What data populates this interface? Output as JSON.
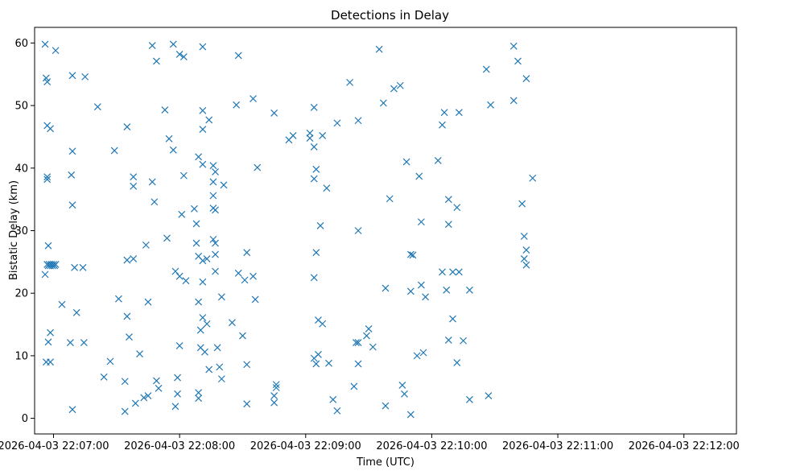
{
  "chart_data": {
    "type": "scatter",
    "title": "Detections in Delay",
    "xlabel": "Time (UTC)",
    "ylabel": "Bistatic Delay (km)",
    "x_unit": "seconds after 2026-04-03 22:07:00",
    "xlim": [
      -9,
      325
    ],
    "ylim": [
      -2.5,
      62.5
    ],
    "x_ticks": [
      {
        "value": 0,
        "label": "2026-04-03 22:07:00"
      },
      {
        "value": 60,
        "label": "2026-04-03 22:08:00"
      },
      {
        "value": 120,
        "label": "2026-04-03 22:09:00"
      },
      {
        "value": 180,
        "label": "2026-04-03 22:10:00"
      },
      {
        "value": 240,
        "label": "2026-04-03 22:11:00"
      },
      {
        "value": 300,
        "label": "2026-04-03 22:12:00"
      }
    ],
    "y_ticks": [
      {
        "value": 0,
        "label": "0"
      },
      {
        "value": 10,
        "label": "10"
      },
      {
        "value": 20,
        "label": "20"
      },
      {
        "value": 30,
        "label": "30"
      },
      {
        "value": 40,
        "label": "40"
      },
      {
        "value": 50,
        "label": "50"
      },
      {
        "value": 60,
        "label": "60"
      }
    ],
    "grid": false,
    "marker": "x",
    "color": "#1f77b4",
    "points": [
      [
        -4,
        59.8
      ],
      [
        -3.5,
        54.4
      ],
      [
        -3,
        53.8
      ],
      [
        -3,
        46.8
      ],
      [
        -1.5,
        46.3
      ],
      [
        1,
        58.8
      ],
      [
        9,
        54.8
      ],
      [
        15,
        54.6
      ],
      [
        9,
        42.7
      ],
      [
        8.5,
        38.9
      ],
      [
        -3,
        38.6
      ],
      [
        -3,
        38.2
      ],
      [
        9,
        34.1
      ],
      [
        -2.5,
        27.6
      ],
      [
        -3,
        24.6
      ],
      [
        -2.5,
        24.4
      ],
      [
        -2,
        24.6
      ],
      [
        -1.5,
        24.4
      ],
      [
        -1,
        24.6
      ],
      [
        -0.5,
        24.4
      ],
      [
        0,
        24.6
      ],
      [
        0.5,
        24.4
      ],
      [
        1,
        24.6
      ],
      [
        -4,
        23
      ],
      [
        10,
        24.1
      ],
      [
        14,
        24.1
      ],
      [
        4,
        18.2
      ],
      [
        11,
        16.9
      ],
      [
        -1.5,
        13.7
      ],
      [
        -2.5,
        12.2
      ],
      [
        8,
        12.1
      ],
      [
        14.5,
        12.1
      ],
      [
        -3.5,
        9
      ],
      [
        -1.5,
        9
      ],
      [
        9,
        1.4
      ],
      [
        21,
        49.8
      ],
      [
        29,
        42.8
      ],
      [
        35,
        46.6
      ],
      [
        38,
        38.6
      ],
      [
        38,
        37.1
      ],
      [
        44,
        27.7
      ],
      [
        35,
        25.3
      ],
      [
        38,
        25.5
      ],
      [
        31,
        19.1
      ],
      [
        45,
        18.6
      ],
      [
        35,
        16.3
      ],
      [
        36,
        13
      ],
      [
        41,
        10.3
      ],
      [
        24,
        6.6
      ],
      [
        27,
        9.1
      ],
      [
        34,
        5.9
      ],
      [
        34,
        1.1
      ],
      [
        39,
        2.4
      ],
      [
        43,
        3.3
      ],
      [
        45,
        3.6
      ],
      [
        47,
        59.6
      ],
      [
        49,
        57.1
      ],
      [
        57,
        59.8
      ],
      [
        60,
        58.2
      ],
      [
        62,
        57.8
      ],
      [
        53,
        49.3
      ],
      [
        55,
        44.7
      ],
      [
        57,
        42.9
      ],
      [
        48,
        34.6
      ],
      [
        54,
        28.8
      ],
      [
        47,
        37.8
      ],
      [
        58,
        23.5
      ],
      [
        60,
        22.7
      ],
      [
        63,
        22
      ],
      [
        49,
        6
      ],
      [
        50,
        4.8
      ],
      [
        60,
        11.6
      ],
      [
        59,
        6.5
      ],
      [
        59,
        3.9
      ],
      [
        58,
        1.9
      ],
      [
        62,
        38.8
      ],
      [
        61,
        32.6
      ],
      [
        67,
        33.5
      ],
      [
        69,
        41.8
      ],
      [
        68,
        31.1
      ],
      [
        71,
        40.6
      ],
      [
        68,
        28
      ],
      [
        69,
        25.9
      ],
      [
        71,
        25.2
      ],
      [
        73,
        25.5
      ],
      [
        71,
        21.8
      ],
      [
        71,
        16.1
      ],
      [
        70,
        14.1
      ],
      [
        73,
        15.1
      ],
      [
        70,
        11.3
      ],
      [
        72,
        10.6
      ],
      [
        74,
        7.8
      ],
      [
        69,
        4.1
      ],
      [
        69,
        3.2
      ],
      [
        71,
        59.4
      ],
      [
        71,
        49.2
      ],
      [
        71,
        46.2
      ],
      [
        74,
        47.7
      ],
      [
        76,
        40.4
      ],
      [
        77,
        39.4
      ],
      [
        76,
        37.8
      ],
      [
        81,
        37.3
      ],
      [
        76,
        35.6
      ],
      [
        76,
        33.6
      ],
      [
        77,
        33.3
      ],
      [
        76,
        28.6
      ],
      [
        77,
        28
      ],
      [
        77,
        26.2
      ],
      [
        77,
        23.5
      ],
      [
        69,
        18.6
      ],
      [
        78,
        11.3
      ],
      [
        79,
        8.2
      ],
      [
        80,
        6.3
      ],
      [
        80,
        19.4
      ],
      [
        85,
        15.3
      ],
      [
        88,
        23.2
      ],
      [
        92,
        26.5
      ],
      [
        91,
        22.1
      ],
      [
        95,
        22.7
      ],
      [
        96,
        19
      ],
      [
        90,
        13.2
      ],
      [
        92,
        8.6
      ],
      [
        92,
        2.3
      ],
      [
        87,
        50.1
      ],
      [
        95,
        51.1
      ],
      [
        88,
        58
      ],
      [
        97,
        40.1
      ],
      [
        105,
        48.8
      ],
      [
        112,
        44.5
      ],
      [
        114,
        45.2
      ],
      [
        122,
        45.6
      ],
      [
        122,
        44.8
      ],
      [
        124,
        43.4
      ],
      [
        124,
        49.7
      ],
      [
        128,
        45.2
      ],
      [
        135,
        47.2
      ],
      [
        130,
        36.8
      ],
      [
        125,
        39.8
      ],
      [
        124,
        38.3
      ],
      [
        127,
        30.8
      ],
      [
        125,
        26.5
      ],
      [
        124,
        22.5
      ],
      [
        124,
        9.6
      ],
      [
        125,
        8.7
      ],
      [
        126,
        10.2
      ],
      [
        126,
        15.7
      ],
      [
        128,
        15.1
      ],
      [
        131,
        8.8
      ],
      [
        133,
        3
      ],
      [
        135,
        1.2
      ],
      [
        105,
        3.6
      ],
      [
        105,
        2.5
      ],
      [
        106,
        4.9
      ],
      [
        106,
        5.4
      ],
      [
        141,
        53.7
      ],
      [
        145,
        47.6
      ],
      [
        145,
        12.1
      ],
      [
        149,
        13.2
      ],
      [
        144,
        12.1
      ],
      [
        150,
        14.3
      ],
      [
        152,
        11.4
      ],
      [
        155,
        59
      ],
      [
        157,
        50.4
      ],
      [
        145,
        30
      ],
      [
        160,
        35.1
      ],
      [
        158,
        20.8
      ],
      [
        145,
        8.7
      ],
      [
        143,
        5.1
      ],
      [
        158,
        2
      ],
      [
        162,
        52.7
      ],
      [
        165,
        53.2
      ],
      [
        168,
        41
      ],
      [
        174,
        38.7
      ],
      [
        170,
        20.3
      ],
      [
        171,
        26.1
      ],
      [
        170,
        26.2
      ],
      [
        175,
        31.4
      ],
      [
        175,
        21.3
      ],
      [
        177,
        19.4
      ],
      [
        173,
        10
      ],
      [
        176,
        10.5
      ],
      [
        166,
        5.3
      ],
      [
        167,
        3.9
      ],
      [
        170,
        0.6
      ],
      [
        183,
        41.2
      ],
      [
        185,
        46.9
      ],
      [
        186,
        48.9
      ],
      [
        193,
        48.9
      ],
      [
        192,
        33.7
      ],
      [
        188,
        35
      ],
      [
        188,
        31
      ],
      [
        190,
        23.4
      ],
      [
        185,
        23.4
      ],
      [
        187,
        20.5
      ],
      [
        188,
        12.5
      ],
      [
        190,
        15.9
      ],
      [
        192,
        8.9
      ],
      [
        195,
        12.4
      ],
      [
        193,
        23.4
      ],
      [
        198,
        3
      ],
      [
        198,
        20.5
      ],
      [
        207,
        3.6
      ],
      [
        206,
        55.8
      ],
      [
        208,
        50.1
      ],
      [
        219,
        59.5
      ],
      [
        221,
        57.1
      ],
      [
        225,
        54.3
      ],
      [
        219,
        50.8
      ],
      [
        228,
        38.4
      ],
      [
        223,
        34.3
      ],
      [
        224,
        29.1
      ],
      [
        225,
        26.9
      ],
      [
        224,
        25.5
      ],
      [
        225,
        24.5
      ]
    ]
  }
}
